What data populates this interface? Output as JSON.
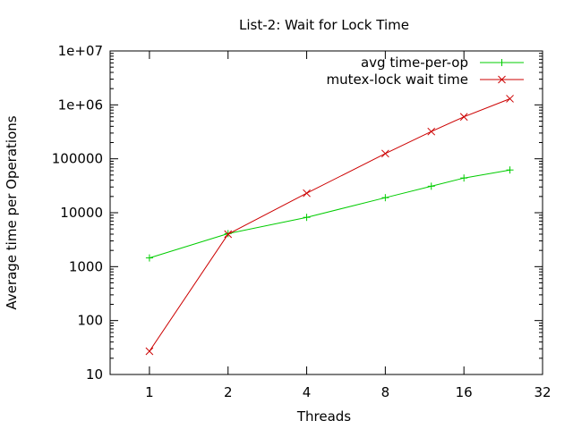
{
  "chart_data": {
    "type": "line",
    "title": "List-2: Wait for Lock Time",
    "xlabel": "Threads",
    "ylabel": "Average time per Operations",
    "xscale": "log2",
    "yscale": "log10",
    "xlim": [
      0.7071,
      32
    ],
    "ylim": [
      10,
      10000000
    ],
    "grid": false,
    "legend_position": "top-right",
    "x_ticks": [
      {
        "value": 1,
        "label": "1"
      },
      {
        "value": 2,
        "label": "2"
      },
      {
        "value": 4,
        "label": "4"
      },
      {
        "value": 8,
        "label": "8"
      },
      {
        "value": 16,
        "label": "16"
      },
      {
        "value": 32,
        "label": "32"
      }
    ],
    "y_ticks": [
      {
        "value": 10,
        "label": "10"
      },
      {
        "value": 100,
        "label": "100"
      },
      {
        "value": 1000,
        "label": "1000"
      },
      {
        "value": 10000,
        "label": "10000"
      },
      {
        "value": 100000,
        "label": "100000"
      },
      {
        "value": 1000000,
        "label": "1e+06"
      },
      {
        "value": 10000000,
        "label": "1e+07"
      }
    ],
    "series": [
      {
        "name": "avg time-per-op",
        "color": "#00cc00",
        "marker": "plus",
        "points": [
          {
            "x": 1,
            "y": 1450
          },
          {
            "x": 2,
            "y": 4100
          },
          {
            "x": 4,
            "y": 8200
          },
          {
            "x": 8,
            "y": 19000
          },
          {
            "x": 12,
            "y": 31000
          },
          {
            "x": 16,
            "y": 44000
          },
          {
            "x": 24,
            "y": 62000
          }
        ]
      },
      {
        "name": "mutex-lock wait time",
        "color": "#cc0000",
        "marker": "cross",
        "points": [
          {
            "x": 1,
            "y": 27
          },
          {
            "x": 2,
            "y": 4000
          },
          {
            "x": 4,
            "y": 23000
          },
          {
            "x": 8,
            "y": 125000
          },
          {
            "x": 12,
            "y": 320000
          },
          {
            "x": 16,
            "y": 600000
          },
          {
            "x": 24,
            "y": 1300000
          }
        ]
      }
    ]
  }
}
